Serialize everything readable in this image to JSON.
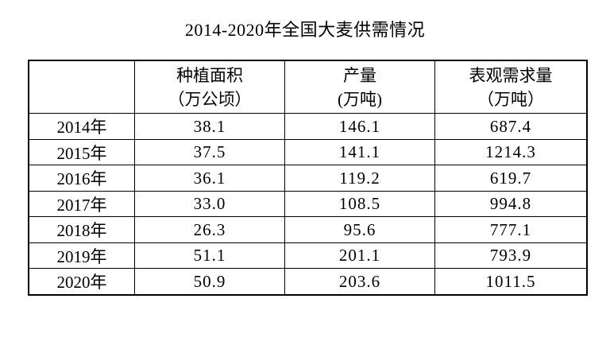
{
  "page": {
    "title": "2014-2020年全国大麦供需情况"
  },
  "table": {
    "columns": [
      {
        "line1": "",
        "line2": ""
      },
      {
        "line1": "种植面积",
        "line2": "（万公顷）"
      },
      {
        "line1": "产量",
        "line2": "(万吨)"
      },
      {
        "line1": "表观需求量",
        "line2": "（万吨）"
      }
    ],
    "rows": [
      {
        "year": "2014年",
        "area": "38.1",
        "output": "146.1",
        "demand": "687.4"
      },
      {
        "year": "2015年",
        "area": "37.5",
        "output": "141.1",
        "demand": "1214.3"
      },
      {
        "year": "2016年",
        "area": "36.1",
        "output": "119.2",
        "demand": "619.7"
      },
      {
        "year": "2017年",
        "area": "33.0",
        "output": "108.5",
        "demand": "994.8"
      },
      {
        "year": "2018年",
        "area": "26.3",
        "output": "95.6",
        "demand": "777.1"
      },
      {
        "year": "2019年",
        "area": "51.1",
        "output": "201.1",
        "demand": "793.9"
      },
      {
        "year": "2020年",
        "area": "50.9",
        "output": "203.6",
        "demand": "1011.5"
      }
    ]
  },
  "chart_data": {
    "type": "table",
    "title": "2014-2020年全国大麦供需情况",
    "categories": [
      "2014年",
      "2015年",
      "2016年",
      "2017年",
      "2018年",
      "2019年",
      "2020年"
    ],
    "series": [
      {
        "name": "种植面积（万公顷）",
        "values": [
          38.1,
          37.5,
          36.1,
          33.0,
          26.3,
          51.1,
          50.9
        ]
      },
      {
        "name": "产量(万吨)",
        "values": [
          146.1,
          141.1,
          119.2,
          108.5,
          95.6,
          201.1,
          203.6
        ]
      },
      {
        "name": "表观需求量（万吨）",
        "values": [
          687.4,
          1214.3,
          619.7,
          994.8,
          777.1,
          793.9,
          1011.5
        ]
      }
    ],
    "layout": {
      "title_position": "top-center",
      "text_color": "#000000",
      "border_color": "#000000",
      "background_color": "#ffffff"
    }
  }
}
